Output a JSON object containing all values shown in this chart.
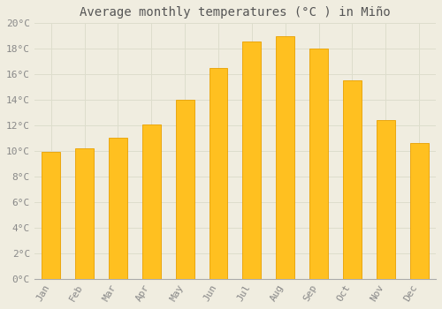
{
  "title": "Average monthly temperatures (°C ) in Miño",
  "months": [
    "Jan",
    "Feb",
    "Mar",
    "Apr",
    "May",
    "Jun",
    "Jul",
    "Aug",
    "Sep",
    "Oct",
    "Nov",
    "Dec"
  ],
  "values": [
    9.9,
    10.2,
    11.0,
    12.1,
    14.0,
    16.5,
    18.6,
    19.0,
    18.0,
    15.5,
    12.4,
    10.6
  ],
  "bar_color_face": "#FFC020",
  "bar_color_edge": "#E8A000",
  "ylim": [
    0,
    20
  ],
  "ytick_step": 2,
  "background_color": "#f0ede0",
  "plot_background": "#f0ede0",
  "grid_color": "#ddddcc",
  "title_fontsize": 10,
  "tick_fontsize": 8,
  "tick_label_color": "#888888",
  "font_family": "monospace",
  "bar_width": 0.55
}
